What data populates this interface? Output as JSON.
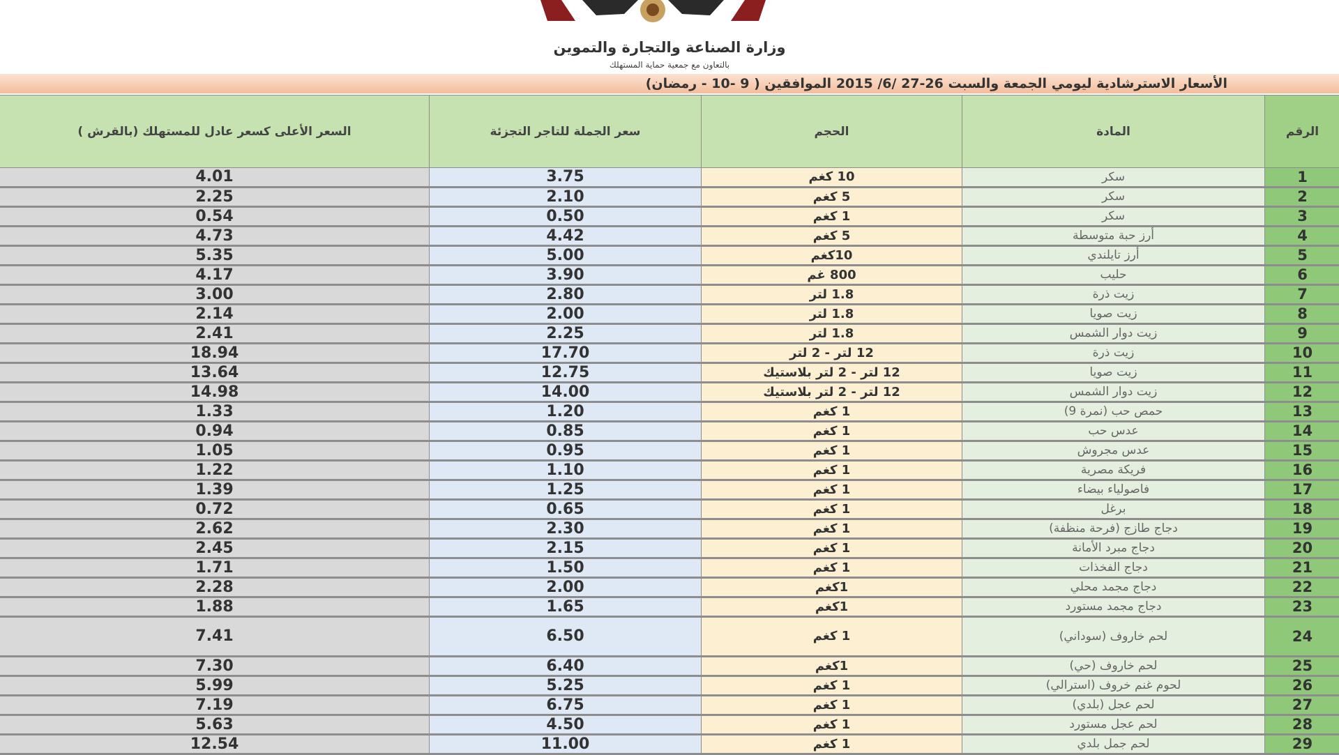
{
  "header": {
    "ministry": "وزارة الصناعة والتجارة والتموين",
    "cooperation": "بالتعاون مع جمعية حماية المستهلك",
    "title": "الأسعار الاسترشادية ليومي الجمعة والسبت 26-27 /6/ 2015 الموافقين ( 9 -10 - رمضان)"
  },
  "columns": {
    "num": "الرقم",
    "item": "المادة",
    "size": "الحجم",
    "wholesale": "سعر الجملة للتاجر التجزئة",
    "retail": "السعر الأعلى كسعر عادل للمستهلك (بالقرش )"
  },
  "colors": {
    "header_green": "#c5e2b0",
    "num_green": "#90c879",
    "item_bg": "#e4efe0",
    "size_bg": "#fdf0d2",
    "wholesale_bg": "#dfe9f5",
    "retail_bg": "#d9d9d9",
    "title_band": "#f3bd9c"
  },
  "rows": [
    {
      "num": "1",
      "item": "سكر",
      "size": "10 كغم",
      "wholesale": "3.75",
      "retail": "4.01"
    },
    {
      "num": "2",
      "item": "سكر",
      "size": "5 كغم",
      "wholesale": "2.10",
      "retail": "2.25"
    },
    {
      "num": "3",
      "item": "سكر",
      "size": "1 كغم",
      "wholesale": "0.50",
      "retail": "0.54"
    },
    {
      "num": "4",
      "item": "أرز حبة متوسطة",
      "size": "5 كغم",
      "wholesale": "4.42",
      "retail": "4.73"
    },
    {
      "num": "5",
      "item": "أرز تايلندي",
      "size": "10كغم",
      "wholesale": "5.00",
      "retail": "5.35"
    },
    {
      "num": "6",
      "item": "حليب",
      "size": "800 غم",
      "wholesale": "3.90",
      "retail": "4.17"
    },
    {
      "num": "7",
      "item": "زيت ذرة",
      "size": "1.8 لتر",
      "wholesale": "2.80",
      "retail": "3.00"
    },
    {
      "num": "8",
      "item": "زيت صويا",
      "size": "1.8 لتر",
      "wholesale": "2.00",
      "retail": "2.14"
    },
    {
      "num": "9",
      "item": "زيت دوار الشمس",
      "size": "1.8 لتر",
      "wholesale": "2.25",
      "retail": "2.41"
    },
    {
      "num": "10",
      "item": "زيت ذرة",
      "size": "12 لتر - 2 لتر",
      "wholesale": "17.70",
      "retail": "18.94"
    },
    {
      "num": "11",
      "item": "زيت صويا",
      "size": "12 لتر - 2 لتر بلاستيك",
      "wholesale": "12.75",
      "retail": "13.64"
    },
    {
      "num": "12",
      "item": "زيت دوار الشمس",
      "size": "12 لتر - 2 لتر بلاستيك",
      "wholesale": "14.00",
      "retail": "14.98"
    },
    {
      "num": "13",
      "item": "حمص حب (نمرة 9)",
      "size": "1 كغم",
      "wholesale": "1.20",
      "retail": "1.33"
    },
    {
      "num": "14",
      "item": "عدس حب",
      "size": "1 كغم",
      "wholesale": "0.85",
      "retail": "0.94"
    },
    {
      "num": "15",
      "item": "عدس مجروش",
      "size": "1 كغم",
      "wholesale": "0.95",
      "retail": "1.05"
    },
    {
      "num": "16",
      "item": "فريكة مصرية",
      "size": "1 كغم",
      "wholesale": "1.10",
      "retail": "1.22"
    },
    {
      "num": "17",
      "item": "فاصولياء بيضاء",
      "size": "1 كغم",
      "wholesale": "1.25",
      "retail": "1.39"
    },
    {
      "num": "18",
      "item": "برغل",
      "size": "1 كغم",
      "wholesale": "0.65",
      "retail": "0.72"
    },
    {
      "num": "19",
      "item": "دجاج طازج (فرحة منظفة)",
      "size": "1 كغم",
      "wholesale": "2.30",
      "retail": "2.62"
    },
    {
      "num": "20",
      "item": "دجاج مبرد الأمانة",
      "size": "1 كغم",
      "wholesale": "2.15",
      "retail": "2.45"
    },
    {
      "num": "21",
      "item": "دجاج الفخذات",
      "size": "1 كغم",
      "wholesale": "1.50",
      "retail": "1.71"
    },
    {
      "num": "22",
      "item": "دجاج مجمد محلي",
      "size": "1كغم",
      "wholesale": "2.00",
      "retail": "2.28"
    },
    {
      "num": "23",
      "item": "دجاج مجمد مستورد",
      "size": "1كغم",
      "wholesale": "1.65",
      "retail": "1.88"
    },
    {
      "num": "24",
      "item": "لحم خاروف (سوداني)",
      "size": "1 كغم",
      "wholesale": "6.50",
      "retail": "7.41"
    },
    {
      "num": "25",
      "item": "لحم خاروف (حي)",
      "size": "1كغم",
      "wholesale": "6.40",
      "retail": "7.30"
    },
    {
      "num": "26",
      "item": "لحوم غنم خروف (استرالي)",
      "size": "1 كغم",
      "wholesale": "5.25",
      "retail": "5.99"
    },
    {
      "num": "27",
      "item": "لحم عجل (بلدي)",
      "size": "1 كغم",
      "wholesale": "6.75",
      "retail": "7.19"
    },
    {
      "num": "28",
      "item": "لحم عجل مستورد",
      "size": "1 كغم",
      "wholesale": "4.50",
      "retail": "5.63"
    },
    {
      "num": "29",
      "item": "لحم جمل بلدي",
      "size": "1 كغم",
      "wholesale": "11.00",
      "retail": "12.54"
    }
  ]
}
